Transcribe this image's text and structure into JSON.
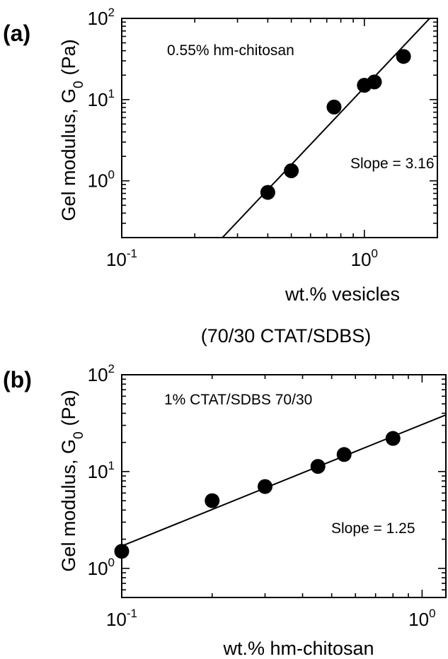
{
  "chart_data": [
    {
      "type": "scatter",
      "panel_label": "(a)",
      "annotation": "0.55% hm-chitosan",
      "slope_label": "Slope = 3.16",
      "xlabel": "wt.% vesicles",
      "xlabel2": "(70/30 CTAT/SDBS)",
      "ylabel_main": "Gel modulus, G",
      "ylabel_sub": "0",
      "ylabel_unit": "(Pa)",
      "x_scale": "log",
      "y_scale": "log",
      "xlim": [
        0.1,
        2.0
      ],
      "ylim": [
        0.2,
        100
      ],
      "x_ticks": [
        {
          "base": "10",
          "exp": "-1",
          "value": 0.1
        },
        {
          "base": "10",
          "exp": "0",
          "value": 1
        }
      ],
      "y_ticks": [
        {
          "base": "10",
          "exp": "0",
          "value": 1
        },
        {
          "base": "10",
          "exp": "1",
          "value": 10
        },
        {
          "base": "10",
          "exp": "2",
          "value": 100
        }
      ],
      "points": [
        {
          "x": 0.4,
          "y": 0.72
        },
        {
          "x": 0.5,
          "y": 1.33
        },
        {
          "x": 0.75,
          "y": 8.1
        },
        {
          "x": 1.0,
          "y": 15.0
        },
        {
          "x": 1.1,
          "y": 16.5
        },
        {
          "x": 1.45,
          "y": 34.0
        }
      ],
      "fit_line": {
        "slope": 3.16,
        "x": [
          0.26,
          2.0
        ],
        "y": [
          0.2,
          126
        ]
      }
    },
    {
      "type": "scatter",
      "panel_label": "(b)",
      "annotation": "1% CTAT/SDBS 70/30",
      "slope_label": "Slope = 1.25",
      "xlabel": "wt.% hm-chitosan",
      "ylabel_main": "Gel modulus, G",
      "ylabel_sub": "0",
      "ylabel_unit": "(Pa)",
      "x_scale": "log",
      "y_scale": "log",
      "xlim": [
        0.1,
        1.2
      ],
      "ylim": [
        0.5,
        100
      ],
      "x_ticks": [
        {
          "base": "10",
          "exp": "-1",
          "value": 0.1
        },
        {
          "base": "10",
          "exp": "0",
          "value": 1
        }
      ],
      "y_ticks": [
        {
          "base": "10",
          "exp": "0",
          "value": 1
        },
        {
          "base": "10",
          "exp": "1",
          "value": 10
        },
        {
          "base": "10",
          "exp": "2",
          "value": 100
        }
      ],
      "points": [
        {
          "x": 0.1,
          "y": 1.5
        },
        {
          "x": 0.2,
          "y": 5.0
        },
        {
          "x": 0.3,
          "y": 7.0
        },
        {
          "x": 0.45,
          "y": 11.3
        },
        {
          "x": 0.55,
          "y": 15.0
        },
        {
          "x": 0.8,
          "y": 22.0
        }
      ],
      "fit_line": {
        "slope": 1.25,
        "x": [
          0.1,
          1.2
        ],
        "y": [
          1.7,
          38.5
        ]
      }
    }
  ]
}
